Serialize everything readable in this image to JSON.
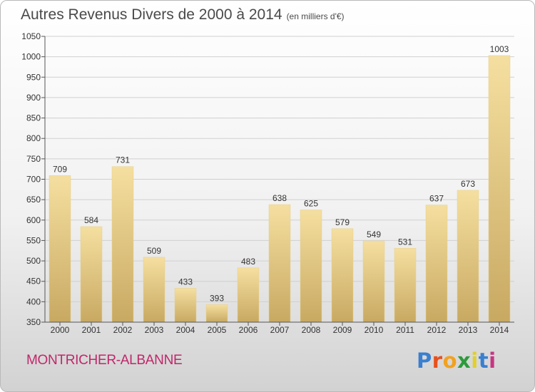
{
  "title": {
    "main": "Autres Revenus Divers de 2000 à 2014",
    "unit": "(en milliers d'€)"
  },
  "place": "MONTRICHER-ALBANNE",
  "logo": {
    "letters": [
      "P",
      "r",
      "o",
      "x",
      "i",
      "t",
      "i"
    ],
    "colors": [
      "#3a7fd0",
      "#e8501c",
      "#f2a11f",
      "#2e9a3c",
      "#e0d02a",
      "#3a7fd0",
      "#c73582"
    ]
  },
  "colors": {
    "bar_light": "#f5dfa0",
    "bar_dark": "#c8a962",
    "grid": "#d0d0d0",
    "axis": "#555555"
  },
  "chart_data": {
    "type": "bar",
    "title": "Autres Revenus Divers de 2000 à 2014",
    "subtitle": "(en milliers d'€)",
    "xlabel": "",
    "ylabel": "",
    "categories": [
      "2000",
      "2001",
      "2002",
      "2003",
      "2004",
      "2005",
      "2006",
      "2007",
      "2008",
      "2009",
      "2010",
      "2011",
      "2012",
      "2013",
      "2014"
    ],
    "values": [
      709,
      584,
      731,
      509,
      433,
      393,
      483,
      638,
      625,
      579,
      549,
      531,
      637,
      673,
      1003
    ],
    "data_labels": [
      "709",
      "584",
      "731",
      "509",
      "433",
      "393",
      "483",
      "638",
      "625",
      "579",
      "549",
      "531",
      "637",
      "673",
      "1003"
    ],
    "ylim": [
      350,
      1050
    ],
    "yticks": [
      350,
      400,
      450,
      500,
      550,
      600,
      650,
      700,
      750,
      800,
      850,
      900,
      950,
      1000,
      1050
    ],
    "grid": true
  }
}
